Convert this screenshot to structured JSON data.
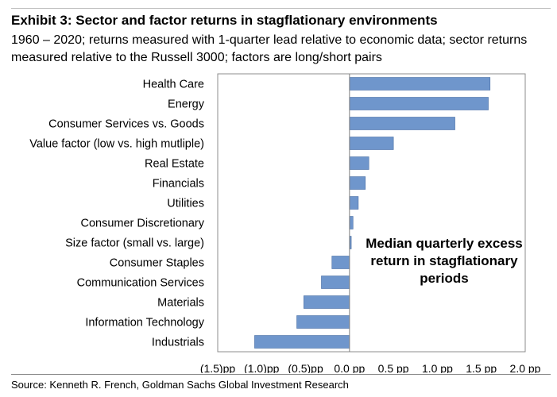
{
  "header": {
    "title": "Exhibit 3: Sector and factor returns in stagflationary environments",
    "subtitle": "1960 – 2020; returns measured with 1-quarter lead relative to economic data; sector returns measured relative to the Russell 3000; factors are long/short pairs"
  },
  "footer": {
    "source": "Source: Kenneth R. French, Goldman Sachs Global Investment Research"
  },
  "chart_data": {
    "type": "bar",
    "orientation": "horizontal",
    "title": "",
    "xlabel": "",
    "ylabel": "",
    "annotation": "Median quarterly excess return in stagflationary periods",
    "categories": [
      "Health Care",
      "Energy",
      "Consumer Services vs. Goods",
      "Value factor (low vs. high mutliple)",
      "Real Estate",
      "Financials",
      "Utilities",
      "Consumer Discretionary",
      "Size factor (small vs. large)",
      "Consumer Staples",
      "Communication Services",
      "Materials",
      "Information Technology",
      "Industrials"
    ],
    "values": [
      1.6,
      1.58,
      1.2,
      0.5,
      0.22,
      0.18,
      0.1,
      0.04,
      0.02,
      -0.2,
      -0.32,
      -0.52,
      -0.6,
      -1.08
    ],
    "xlim": [
      -1.5,
      2.0
    ],
    "xticks": [
      -1.5,
      -1.0,
      -0.5,
      0.0,
      0.5,
      1.0,
      1.5,
      2.0
    ],
    "xtick_labels": [
      "(1.5)pp",
      "(1.0)pp",
      "(0.5)pp",
      "0.0 pp",
      "0.5 pp",
      "1.0 pp",
      "1.5 pp",
      "2.0 pp"
    ],
    "grid": false,
    "legend": "none",
    "bar_color": "#6f96cc"
  }
}
